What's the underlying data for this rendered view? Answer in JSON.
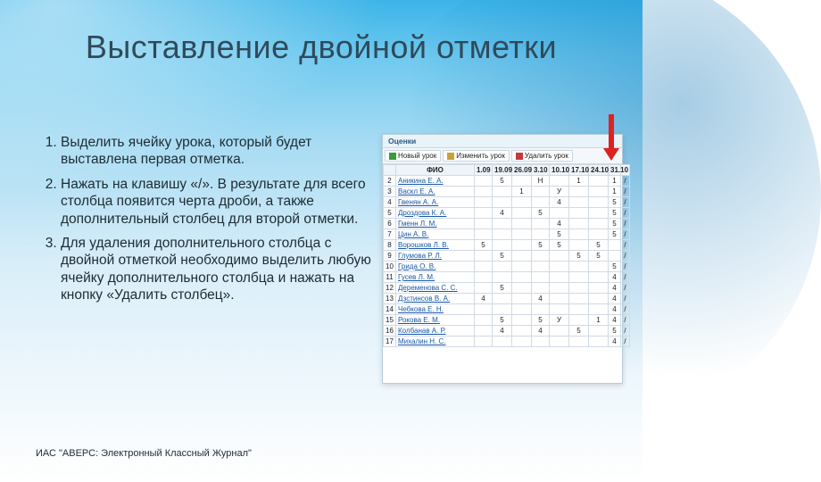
{
  "slide": {
    "title": "Выставление двойной отметки",
    "footer": "ИАС \"АВЕРС: Электронный Классный Журнал\"",
    "background_top": "#3bb4e8",
    "background_bottom": "#ffffff"
  },
  "list": {
    "items": [
      "Выделить ячейку урока, который будет выставлена первая отметка.",
      "Нажать на клавишу «/». В результате для всего столбца появится черта дроби, а также дополнительный столбец для второй отметки.",
      "Для удаления дополнительного столбца с двойной отметкой необходимо выделить любую ячейку дополнительного столбца и нажать на кнопку «Удалить столбец»."
    ],
    "fontsize": 15.5,
    "color": "#1e2b33"
  },
  "screenshot": {
    "tab_title": "Оценки",
    "toolbar": [
      {
        "label": "Новый урок",
        "icon_color": "#3a9b3a"
      },
      {
        "label": "Изменить урок",
        "icon_color": "#caa23a"
      },
      {
        "label": "Удалить урок",
        "icon_color": "#c33a3a"
      }
    ],
    "columns": [
      "",
      "ФИО",
      "1.09",
      "19.09",
      "26.09",
      "3.10",
      "10.10",
      "17.10",
      "24.10",
      "31.10"
    ],
    "split_last_column": true,
    "col_widths": [
      "14px",
      "88px",
      "20px",
      "22px",
      "22px",
      "20px",
      "22px",
      "22px",
      "22px",
      "14px",
      "10px"
    ],
    "header_bg": "#eef5fa",
    "border_color": "#d0dbe4",
    "link_color": "#1a58a6",
    "arrow_color": "#d22",
    "rows": [
      {
        "n": "2",
        "name": "Аникина Е. А.",
        "cells": [
          "",
          "5",
          "",
          "Н",
          "",
          "1",
          "",
          "1",
          "/"
        ]
      },
      {
        "n": "3",
        "name": "Васкл Е. А.",
        "cells": [
          "",
          "",
          "1",
          "",
          "У",
          "",
          "",
          "1",
          "/"
        ]
      },
      {
        "n": "4",
        "name": "Гвенян А. А.",
        "cells": [
          "",
          "",
          "",
          "",
          "4",
          "",
          "",
          "5",
          "/"
        ]
      },
      {
        "n": "5",
        "name": "Дроздова К. А.",
        "cells": [
          "",
          "4",
          "",
          "5",
          "",
          "",
          "",
          "5",
          "/"
        ]
      },
      {
        "n": "6",
        "name": "Гменн Л. М.",
        "cells": [
          "",
          "",
          "",
          "",
          "4",
          "",
          "",
          "5",
          "/"
        ]
      },
      {
        "n": "7",
        "name": "Цин А. В.",
        "cells": [
          "",
          "",
          "",
          "",
          "5",
          "",
          "",
          "5",
          "/"
        ]
      },
      {
        "n": "8",
        "name": "Ворошков Л. В.",
        "cells": [
          "5",
          "",
          "",
          "5",
          "5",
          "",
          "5",
          "",
          "/"
        ]
      },
      {
        "n": "9",
        "name": "Глумова Р. Л.",
        "cells": [
          "",
          "5",
          "",
          "",
          "",
          "5",
          "5",
          "",
          "/"
        ]
      },
      {
        "n": "10",
        "name": "Грида О. В.",
        "cells": [
          "",
          "",
          "",
          "",
          "",
          "",
          "",
          "5",
          "/"
        ]
      },
      {
        "n": "11",
        "name": "Гусев Л. М.",
        "cells": [
          "",
          "",
          "",
          "",
          "",
          "",
          "",
          "4",
          "/"
        ]
      },
      {
        "n": "12",
        "name": "Деременова С. С.",
        "cells": [
          "",
          "5",
          "",
          "",
          "",
          "",
          "",
          "4",
          "/"
        ]
      },
      {
        "n": "13",
        "name": "Дзстинсов В. А.",
        "cells": [
          "4",
          "",
          "",
          "4",
          "",
          "",
          "",
          "4",
          "/"
        ]
      },
      {
        "n": "14",
        "name": "Чебкова Е. Н.",
        "cells": [
          "",
          "",
          "",
          "",
          "",
          "",
          "",
          "4",
          "/"
        ]
      },
      {
        "n": "15",
        "name": "Рокова Е. М.",
        "cells": [
          "",
          "5",
          "",
          "5",
          "У",
          "",
          "1",
          "4",
          "/"
        ]
      },
      {
        "n": "16",
        "name": "Колбанав А. Р.",
        "cells": [
          "",
          "4",
          "",
          "4",
          "",
          "5",
          "",
          "5",
          "/"
        ]
      },
      {
        "n": "17",
        "name": "Михалин Н. С.",
        "cells": [
          "",
          "",
          "",
          "",
          "",
          "",
          "",
          "4",
          "/"
        ]
      }
    ]
  }
}
